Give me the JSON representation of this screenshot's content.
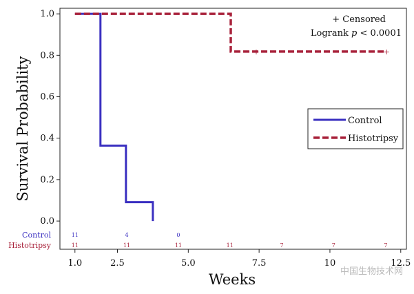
{
  "chart_data": {
    "type": "line",
    "subtype": "kaplan-meier step",
    "xlabel": "Weeks",
    "ylabel": "Survival Probability",
    "xlim": [
      0.47,
      12.7
    ],
    "ylim": [
      -0.136,
      1.027
    ],
    "xticks": [
      1.0,
      2.5,
      5.0,
      7.5,
      10,
      12.5
    ],
    "xtick_labels": [
      "1.0",
      "2.5",
      "5.0",
      "7.5",
      "10",
      "12.5"
    ],
    "yticks": [
      0.0,
      0.2,
      0.4,
      0.6,
      0.8,
      1.0
    ],
    "ytick_labels": [
      "0.0",
      "0.2",
      "0.4",
      "0.6",
      "0.8",
      "1.0"
    ],
    "grid": false,
    "legend_position": "right",
    "series": [
      {
        "name": "Control",
        "color": "#3a2fc0",
        "style": "solid",
        "steps": [
          [
            1.0,
            1.0
          ],
          [
            1.9,
            1.0
          ],
          [
            1.9,
            0.364
          ],
          [
            2.8,
            0.364
          ],
          [
            2.8,
            0.091
          ],
          [
            3.75,
            0.091
          ],
          [
            3.75,
            0.0
          ]
        ],
        "censored": []
      },
      {
        "name": "Histotripsy",
        "color": "#a8213a",
        "style": "dashed",
        "steps": [
          [
            1.0,
            1.0
          ],
          [
            6.5,
            1.0
          ],
          [
            6.5,
            0.818
          ],
          [
            12.0,
            0.818
          ]
        ],
        "censored": [
          [
            7.4,
            0.818
          ],
          [
            12.0,
            0.818
          ]
        ]
      }
    ],
    "annotations": {
      "censored_label": "+ Censored",
      "logrank_prefix": "Logrank ",
      "logrank_p": "p",
      "logrank_suffix": " < 0.0001"
    },
    "risk_table": {
      "x": [
        1.0,
        2.83,
        4.65,
        6.47,
        8.3,
        10.13,
        11.97
      ],
      "rows": [
        {
          "label": "Control",
          "color": "#3a2fc0",
          "counts": [
            "11",
            "4",
            "0"
          ]
        },
        {
          "label": "Histotripsy",
          "color": "#a8213a",
          "counts": [
            "11",
            "11",
            "11",
            "11",
            "7",
            "7",
            "7"
          ]
        }
      ]
    }
  },
  "watermark": "中国生物技术网"
}
